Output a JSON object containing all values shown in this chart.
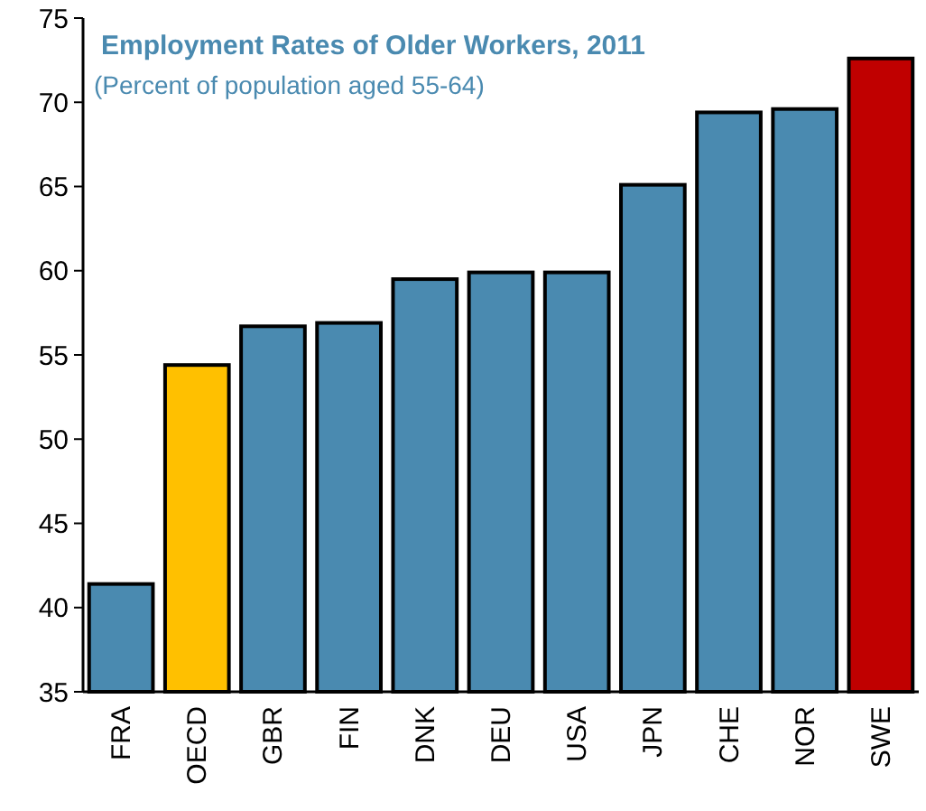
{
  "chart_data": {
    "type": "bar",
    "title": "Employment Rates of Older Workers, 2011",
    "subtitle": "(Percent of population aged 55-64)",
    "categories": [
      "FRA",
      "OECD",
      "GBR",
      "FIN",
      "DNK",
      "DEU",
      "USA",
      "JPN",
      "CHE",
      "NOR",
      "SWE"
    ],
    "values": [
      41.4,
      54.4,
      56.7,
      56.9,
      59.5,
      59.9,
      59.9,
      65.1,
      69.4,
      69.6,
      72.6
    ],
    "colors": [
      "#4a8ab0",
      "#ffc000",
      "#4a8ab0",
      "#4a8ab0",
      "#4a8ab0",
      "#4a8ab0",
      "#4a8ab0",
      "#4a8ab0",
      "#4a8ab0",
      "#4a8ab0",
      "#c00000"
    ],
    "ylim": [
      35,
      75
    ],
    "yticks": [
      35,
      40,
      45,
      50,
      55,
      60,
      65,
      70,
      75
    ],
    "grid": false
  }
}
